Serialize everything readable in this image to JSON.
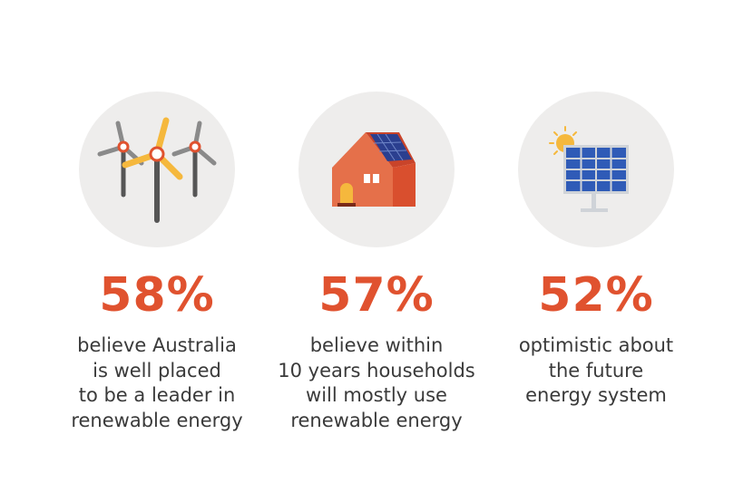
{
  "stats": [
    {
      "value": "58%",
      "lines": [
        "believe Australia",
        "is well placed",
        "to be a leader in",
        "renewable energy"
      ]
    },
    {
      "value": "57%",
      "lines": [
        "believe within",
        "10 years households",
        "will mostly use",
        "renewable energy"
      ]
    },
    {
      "value": "52%",
      "lines": [
        "optimistic about",
        "the future",
        "energy system"
      ]
    }
  ]
}
